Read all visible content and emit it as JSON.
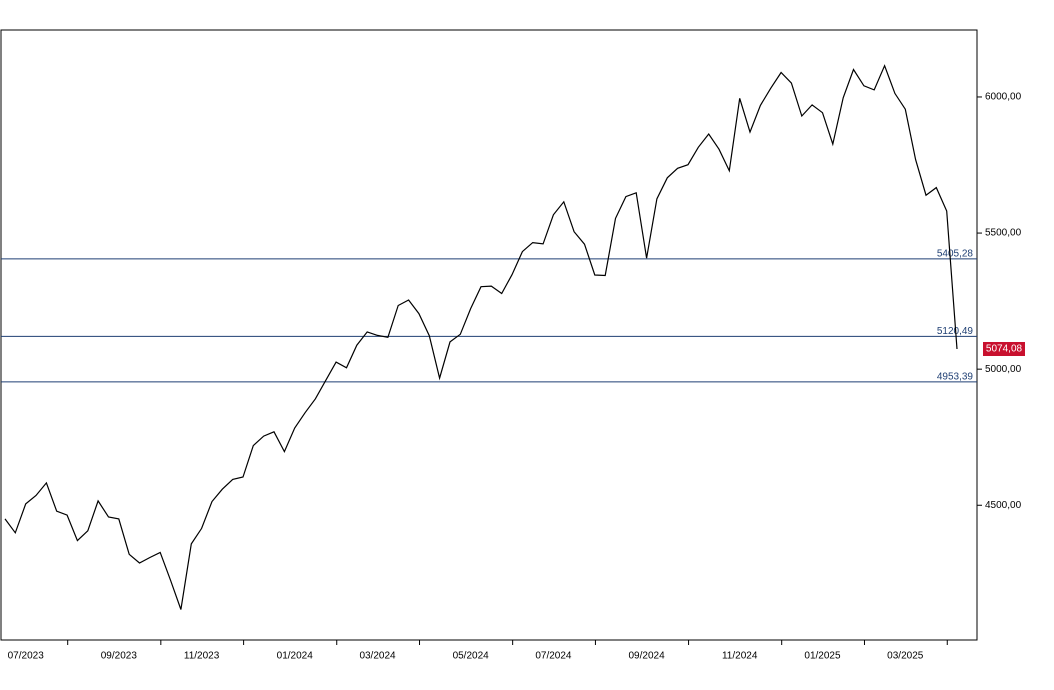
{
  "chart_data": {
    "type": "line",
    "categories": [
      null,
      null,
      "07/2023",
      null,
      null,
      null,
      null,
      null,
      null,
      null,
      null,
      "09/2023",
      null,
      null,
      null,
      null,
      null,
      null,
      null,
      "11/2023",
      null,
      null,
      null,
      null,
      null,
      null,
      null,
      null,
      "01/2024",
      null,
      null,
      null,
      null,
      null,
      null,
      null,
      "03/2024",
      null,
      null,
      null,
      null,
      null,
      null,
      null,
      null,
      "05/2024",
      null,
      null,
      null,
      null,
      null,
      null,
      null,
      "07/2024",
      null,
      null,
      null,
      null,
      null,
      null,
      null,
      null,
      "09/2024",
      null,
      null,
      null,
      null,
      null,
      null,
      null,
      null,
      "11/2024",
      null,
      null,
      null,
      null,
      null,
      null,
      null,
      "01/2025",
      null,
      null,
      null,
      null,
      null,
      null,
      null,
      "03/2025",
      null,
      null,
      null,
      null,
      null
    ],
    "values": [
      4450,
      4399,
      4505,
      4536,
      4582,
      4478,
      4464,
      4370,
      4406,
      4516,
      4457,
      4450,
      4320,
      4288,
      4308,
      4327,
      4224,
      4117,
      4358,
      4415,
      4514,
      4559,
      4595,
      4604,
      4719,
      4754,
      4770,
      4697,
      4784,
      4840,
      4891,
      4959,
      5026,
      5005,
      5088,
      5137,
      5124,
      5117,
      5234,
      5254,
      5204,
      5123,
      4967,
      5100,
      5128,
      5223,
      5303,
      5305,
      5278,
      5347,
      5432,
      5465,
      5460,
      5567,
      5615,
      5505,
      5459,
      5346,
      5344,
      5554,
      5634,
      5648,
      5408,
      5626,
      5703,
      5738,
      5751,
      5815,
      5864,
      5808,
      5729,
      5995,
      5871,
      5969,
      6032,
      6090,
      6051,
      5930,
      5971,
      5942,
      5827,
      5997,
      6101,
      6041,
      6026,
      6115,
      6013,
      5955,
      5770,
      5639,
      5667,
      5581,
      5074.08
    ],
    "color": "#000000",
    "ylim": [
      4005,
      6246
    ],
    "yticks": [
      {
        "value": 4500,
        "label": "4500,00"
      },
      {
        "value": 5000,
        "label": "5000,00"
      },
      {
        "value": 5500,
        "label": "5500,00"
      },
      {
        "value": 6000,
        "label": "6000,00"
      }
    ],
    "levels": [
      {
        "value": 5405.28,
        "label": "5405,28"
      },
      {
        "value": 5120.49,
        "label": "5120,49"
      },
      {
        "value": 4953.39,
        "label": "4953,39"
      }
    ],
    "level_color": "#1f3f73",
    "last": {
      "value": 5074.08,
      "label": "5074,08"
    },
    "last_color": "#c8102e"
  }
}
